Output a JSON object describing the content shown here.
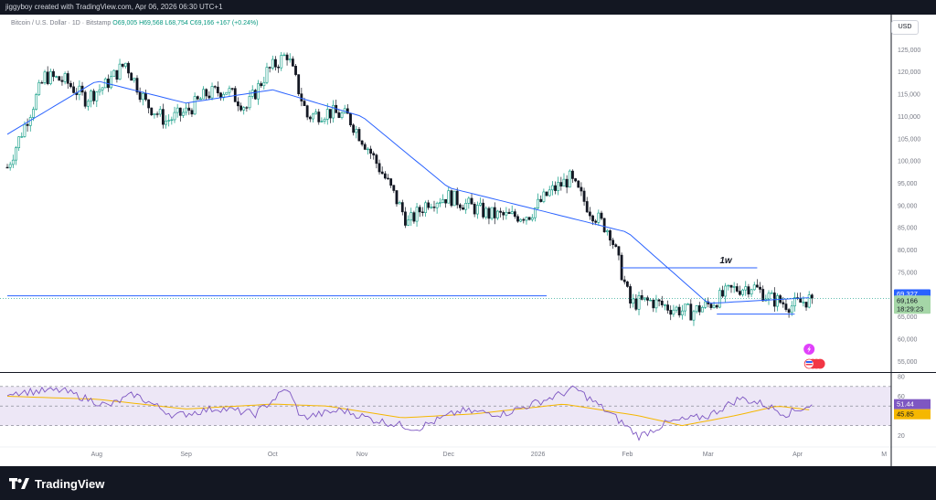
{
  "header": {
    "caption": "jiggyboy created with TradingView.com, Apr 06, 2026 06:30 UTC+1"
  },
  "legend": {
    "symbol": "Bitcoin / U.S. Dollar · 1D · Bitstamp",
    "ohlc": "O69,005 H69,568 L68,754 C69,166 +167 (+0.24%)"
  },
  "currency": "USD",
  "annotation": "1w",
  "footer": {
    "brand": "TradingView"
  },
  "colors": {
    "up": "#089981",
    "down": "#131722",
    "ma": "#2962ff",
    "rsi": "#7e57c2",
    "rsi_ma": "#f5b700",
    "band": "#ede7f6"
  },
  "chart_data": [
    {
      "type": "candlestick",
      "price_axis_ticks": [
        125000,
        120000,
        115000,
        110000,
        105000,
        100000,
        95000,
        90000,
        85000,
        80000,
        75000,
        70000,
        65000,
        60000,
        55000
      ],
      "x_tick_labels": [
        "Aug",
        "Sep",
        "Oct",
        "Nov",
        "Dec",
        "2026",
        "Feb",
        "Mar",
        "Apr",
        "M"
      ],
      "ylim": [
        53000,
        130000
      ],
      "close_path": [
        [
          "2025-07-07",
          108000
        ],
        [
          "2025-07-14",
          119000
        ],
        [
          "2025-07-21",
          118000
        ],
        [
          "2025-07-28",
          114000
        ],
        [
          "2025-08-04",
          117000
        ],
        [
          "2025-08-11",
          122000
        ],
        [
          "2025-08-18",
          113000
        ],
        [
          "2025-08-25",
          109000
        ],
        [
          "2025-09-01",
          111000
        ],
        [
          "2025-09-08",
          115000
        ],
        [
          "2025-09-15",
          116000
        ],
        [
          "2025-09-22",
          112000
        ],
        [
          "2025-09-29",
          120000
        ],
        [
          "2025-10-06",
          124000
        ],
        [
          "2025-10-13",
          110000
        ],
        [
          "2025-10-20",
          111000
        ],
        [
          "2025-10-27",
          110000
        ],
        [
          "2025-11-03",
          103000
        ],
        [
          "2025-11-10",
          95000
        ],
        [
          "2025-11-17",
          86000
        ],
        [
          "2025-11-24",
          91000
        ],
        [
          "2025-12-01",
          92000
        ],
        [
          "2025-12-08",
          90000
        ],
        [
          "2025-12-15",
          88000
        ],
        [
          "2025-12-22",
          87500
        ],
        [
          "2025-12-29",
          88000
        ],
        [
          "2026-01-05",
          93000
        ],
        [
          "2026-01-12",
          96000
        ],
        [
          "2026-01-19",
          89000
        ],
        [
          "2026-01-26",
          84000
        ],
        [
          "2026-02-02",
          68000
        ],
        [
          "2026-02-09",
          68500
        ],
        [
          "2026-02-16",
          67000
        ],
        [
          "2026-02-23",
          66000
        ],
        [
          "2026-03-02",
          68000
        ],
        [
          "2026-03-09",
          71000
        ],
        [
          "2026-03-16",
          72000
        ],
        [
          "2026-03-23",
          69000
        ],
        [
          "2026-03-30",
          67500
        ],
        [
          "2026-04-06",
          69166
        ]
      ],
      "ma_path": [
        [
          "2025-07-01",
          106000
        ],
        [
          "2025-08-01",
          118000
        ],
        [
          "2025-09-01",
          113000
        ],
        [
          "2025-10-01",
          116000
        ],
        [
          "2025-11-01",
          110000
        ],
        [
          "2025-12-01",
          94000
        ],
        [
          "2026-01-01",
          89000
        ],
        [
          "2026-02-01",
          84000
        ],
        [
          "2026-03-01",
          68000
        ],
        [
          "2026-04-06",
          69327
        ]
      ],
      "last_price": 69166,
      "ma_value": 69327,
      "countdown": "18:29:23",
      "horizontal_levels": [
        {
          "price": 69700,
          "from": "2025-07-01",
          "to": "2026-01-04"
        },
        {
          "price": 76000,
          "from": "2026-01-30",
          "to": "2026-03-18"
        },
        {
          "price": 65600,
          "from": "2026-03-04",
          "to": "2026-03-31"
        }
      ],
      "price_tags": [
        "69,327",
        "69,166",
        "18:29:23"
      ]
    },
    {
      "type": "line",
      "name": "RSI",
      "axis_ticks": [
        80,
        60,
        20
      ],
      "band": [
        30,
        70
      ],
      "ylim": [
        10,
        82
      ],
      "rsi_value": 51.44,
      "rsi_ma_value": 45.85,
      "value_tags": [
        "51.44",
        "45.85"
      ],
      "rsi_path": [
        [
          "2025-07-01",
          64
        ],
        [
          "2025-07-20",
          66
        ],
        [
          "2025-08-05",
          50
        ],
        [
          "2025-08-14",
          62
        ],
        [
          "2025-08-28",
          40
        ],
        [
          "2025-09-12",
          48
        ],
        [
          "2025-09-25",
          42
        ],
        [
          "2025-10-06",
          68
        ],
        [
          "2025-10-11",
          38
        ],
        [
          "2025-10-25",
          46
        ],
        [
          "2025-11-05",
          36
        ],
        [
          "2025-11-20",
          27
        ],
        [
          "2025-12-05",
          45
        ],
        [
          "2025-12-20",
          42
        ],
        [
          "2026-01-05",
          58
        ],
        [
          "2026-01-14",
          68
        ],
        [
          "2026-01-28",
          38
        ],
        [
          "2026-02-05",
          19
        ],
        [
          "2026-02-15",
          33
        ],
        [
          "2026-03-01",
          40
        ],
        [
          "2026-03-12",
          58
        ],
        [
          "2026-03-20",
          52
        ],
        [
          "2026-03-28",
          42
        ],
        [
          "2026-04-06",
          51.44
        ]
      ],
      "rsi_ma_path": [
        [
          "2025-07-01",
          60
        ],
        [
          "2025-08-01",
          57
        ],
        [
          "2025-09-01",
          47
        ],
        [
          "2025-10-01",
          52
        ],
        [
          "2025-10-20",
          50
        ],
        [
          "2025-11-15",
          38
        ],
        [
          "2025-12-10",
          42
        ],
        [
          "2026-01-10",
          52
        ],
        [
          "2026-02-05",
          40
        ],
        [
          "2026-02-20",
          30
        ],
        [
          "2026-03-10",
          40
        ],
        [
          "2026-03-25",
          50
        ],
        [
          "2026-04-06",
          45.85
        ]
      ]
    }
  ]
}
